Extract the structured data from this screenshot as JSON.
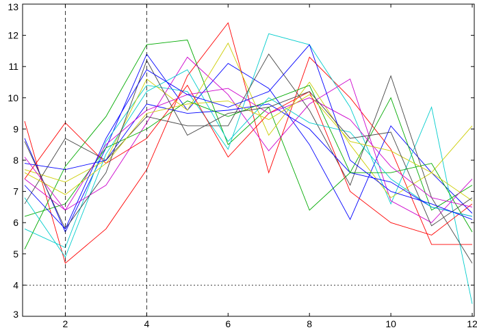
{
  "chart_data": {
    "type": "line",
    "title": "",
    "xlabel": "",
    "ylabel": "",
    "xlim": [
      0.95,
      12.05
    ],
    "ylim": [
      3,
      13
    ],
    "xticks": [
      2,
      4,
      6,
      8,
      10,
      12
    ],
    "yticks": [
      3,
      4,
      5,
      6,
      7,
      8,
      9,
      10,
      11,
      12,
      13
    ],
    "grid": false,
    "reference_lines": {
      "vertical_dashed_x": [
        2,
        4
      ],
      "horizontal_dotted_y": [
        4
      ]
    },
    "x": [
      1,
      2,
      3,
      4,
      5,
      6,
      7,
      8,
      9,
      10,
      11,
      12
    ],
    "series": [
      {
        "color": "#ff0000",
        "values": [
          9.25,
          4.7,
          5.8,
          7.7,
          10.7,
          12.4,
          7.6,
          11.3,
          10.0,
          8.35,
          5.3,
          5.3
        ]
      },
      {
        "color": "#0000ff",
        "values": [
          8.7,
          5.7,
          8.4,
          11.4,
          9.6,
          11.1,
          10.3,
          8.5,
          6.1,
          9.1,
          7.6,
          6.3
        ]
      },
      {
        "color": "#00aa00",
        "values": [
          5.15,
          7.8,
          9.4,
          11.7,
          11.85,
          8.5,
          9.7,
          6.4,
          7.6,
          10.0,
          6.4,
          7.2
        ]
      },
      {
        "color": "#00cccc",
        "values": [
          5.8,
          5.2,
          8.6,
          10.4,
          10.2,
          8.35,
          12.05,
          11.7,
          9.7,
          6.6,
          9.7,
          3.4
        ]
      },
      {
        "color": "#cc00cc",
        "values": [
          7.4,
          6.4,
          7.2,
          9.2,
          11.3,
          10.1,
          8.3,
          9.8,
          10.6,
          6.7,
          6.0,
          7.4
        ]
      },
      {
        "color": "#cccc00",
        "values": [
          7.7,
          7.3,
          8.0,
          10.6,
          9.6,
          11.75,
          8.8,
          10.5,
          8.5,
          6.8,
          7.6,
          9.1
        ]
      },
      {
        "color": "#444444",
        "values": [
          6.6,
          8.7,
          8.0,
          9.4,
          9.1,
          9.1,
          11.4,
          9.6,
          7.2,
          10.7,
          6.8,
          4.7
        ]
      },
      {
        "color": "#ff0000",
        "values": [
          7.4,
          9.2,
          7.9,
          8.7,
          10.4,
          8.1,
          9.5,
          10.2,
          7.0,
          6.0,
          5.6,
          6.6
        ]
      },
      {
        "color": "#0000ff",
        "values": [
          7.9,
          7.7,
          8.0,
          9.8,
          9.5,
          9.6,
          9.8,
          9.0,
          7.6,
          7.3,
          6.5,
          6.2
        ]
      },
      {
        "color": "#00aa00",
        "values": [
          6.2,
          6.6,
          8.4,
          9.0,
          9.9,
          9.4,
          9.9,
          10.4,
          7.6,
          7.6,
          7.9,
          5.7
        ]
      },
      {
        "color": "#00cccc",
        "values": [
          6.8,
          4.9,
          8.2,
          10.2,
          10.9,
          8.6,
          10.0,
          9.2,
          8.9,
          7.4,
          6.5,
          6.2
        ]
      },
      {
        "color": "#cc00cc",
        "values": [
          8.1,
          6.4,
          8.5,
          9.6,
          10.1,
          10.3,
          9.5,
          10.0,
          9.3,
          7.8,
          6.8,
          6.5
        ]
      },
      {
        "color": "#cccc00",
        "values": [
          7.6,
          6.9,
          7.9,
          9.5,
          9.8,
          9.9,
          9.3,
          10.1,
          8.6,
          8.3,
          7.6,
          6.7
        ]
      },
      {
        "color": "#444444",
        "values": [
          8.6,
          5.8,
          7.6,
          11.2,
          8.8,
          9.5,
          9.7,
          10.2,
          8.7,
          8.9,
          5.9,
          6.8
        ]
      },
      {
        "color": "#0000ff",
        "values": [
          7.2,
          5.8,
          8.7,
          10.9,
          10.1,
          9.7,
          10.2,
          11.7,
          8.0,
          7.0,
          6.6,
          6.1
        ]
      }
    ]
  }
}
